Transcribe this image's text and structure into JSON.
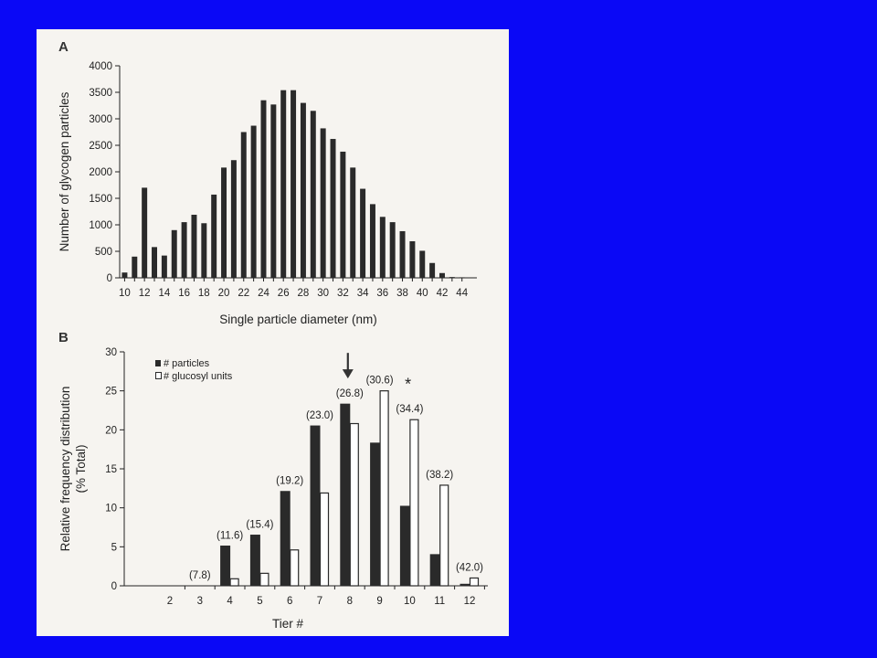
{
  "colors": {
    "slide_background": "#0A08F6",
    "panel_background": "#F6F4F0",
    "bar_dark": "#2A2A2A",
    "bar_open": "#FFFFFF"
  },
  "chart_data": [
    {
      "panel": "A",
      "type": "bar",
      "xlabel": "Single particle diameter (nm)",
      "ylabel": "Number of glycogen particles",
      "xlim": [
        9.5,
        45.5
      ],
      "ylim": [
        0,
        4000
      ],
      "yticks": [
        0,
        500,
        1000,
        1500,
        2000,
        2500,
        3000,
        3500,
        4000
      ],
      "xticks": [
        10,
        12,
        14,
        16,
        18,
        20,
        22,
        24,
        26,
        28,
        30,
        32,
        34,
        36,
        38,
        40,
        42,
        44
      ],
      "grid": false,
      "x": [
        10,
        11,
        12,
        13,
        14,
        15,
        16,
        17,
        18,
        19,
        20,
        21,
        22,
        23,
        24,
        25,
        26,
        27,
        28,
        29,
        30,
        31,
        32,
        33,
        34,
        35,
        36,
        37,
        38,
        39,
        40,
        41,
        42,
        43,
        44
      ],
      "values": [
        100,
        400,
        1700,
        580,
        420,
        900,
        1050,
        1190,
        1030,
        1570,
        2080,
        2220,
        2750,
        2870,
        3350,
        3270,
        3540,
        3540,
        3300,
        3150,
        2820,
        2620,
        2380,
        2080,
        1680,
        1390,
        1150,
        1050,
        880,
        690,
        510,
        280,
        90,
        15,
        10
      ]
    },
    {
      "panel": "B",
      "type": "bar",
      "xlabel": "Tier #",
      "ylabel_lines": [
        "Relative frequency distribution",
        "(% Total)"
      ],
      "ylim": [
        0,
        30
      ],
      "yticks": [
        0,
        5,
        10,
        15,
        20,
        25,
        30
      ],
      "grid": false,
      "legend_position": "top-left",
      "categories": [
        "2",
        "3",
        "4",
        "5",
        "6",
        "7",
        "8",
        "9",
        "10",
        "11",
        "12"
      ],
      "series": [
        {
          "name": "# particles",
          "style": "filled",
          "values": [
            0,
            0,
            5.1,
            6.5,
            12.1,
            20.5,
            23.3,
            18.3,
            10.2,
            4.0,
            0.2
          ]
        },
        {
          "name": "# glucosyl units",
          "style": "open",
          "values": [
            0,
            0,
            0.9,
            1.6,
            4.6,
            11.9,
            20.8,
            25.0,
            21.3,
            12.9,
            1.0
          ]
        }
      ],
      "annotations": [
        {
          "tier": "3",
          "text": "(7.8)"
        },
        {
          "tier": "4",
          "text": "(11.6)"
        },
        {
          "tier": "5",
          "text": "(15.4)"
        },
        {
          "tier": "6",
          "text": "(19.2)"
        },
        {
          "tier": "7",
          "text": "(23.0)"
        },
        {
          "tier": "8",
          "text": "(26.8)"
        },
        {
          "tier": "9",
          "text": "(30.6)"
        },
        {
          "tier": "10",
          "text": "(34.4)"
        },
        {
          "tier": "11",
          "text": "(38.2)"
        },
        {
          "tier": "12",
          "text": "(42.0)"
        }
      ],
      "arrow_marker_tier": "8",
      "star_marker": {
        "tier": "9",
        "text": "*"
      }
    }
  ]
}
